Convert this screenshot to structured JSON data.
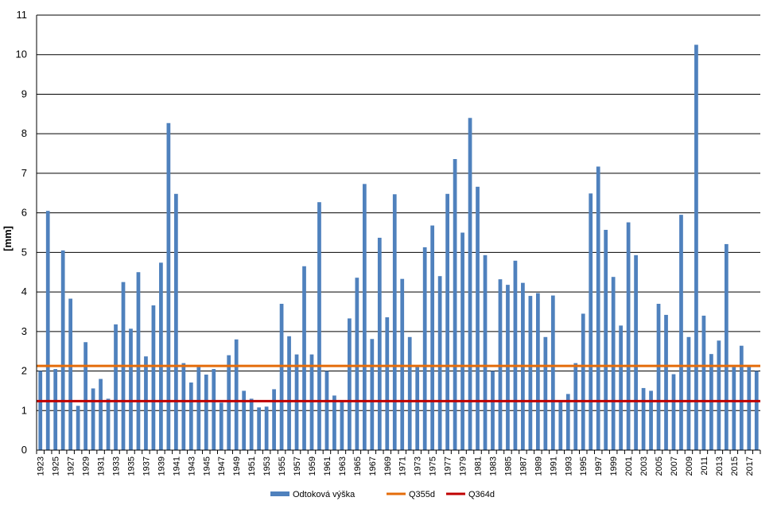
{
  "chart_data": {
    "type": "bar",
    "ylabel": "[mm]",
    "ylim": [
      0,
      11
    ],
    "yticks": [
      0,
      1,
      2,
      3,
      4,
      5,
      6,
      7,
      8,
      9,
      10,
      11
    ],
    "x": [
      1923,
      1924,
      1925,
      1926,
      1927,
      1928,
      1929,
      1930,
      1931,
      1932,
      1933,
      1934,
      1935,
      1936,
      1937,
      1938,
      1939,
      1940,
      1941,
      1942,
      1943,
      1944,
      1945,
      1946,
      1947,
      1948,
      1949,
      1950,
      1951,
      1952,
      1953,
      1954,
      1955,
      1956,
      1957,
      1958,
      1959,
      1960,
      1961,
      1962,
      1963,
      1964,
      1965,
      1966,
      1967,
      1968,
      1969,
      1970,
      1971,
      1972,
      1973,
      1974,
      1975,
      1976,
      1977,
      1978,
      1979,
      1980,
      1981,
      1982,
      1983,
      1984,
      1985,
      1986,
      1987,
      1988,
      1989,
      1990,
      1991,
      1992,
      1993,
      1994,
      1995,
      1996,
      1997,
      1998,
      1999,
      2000,
      2001,
      2002,
      2003,
      2004,
      2005,
      2006,
      2007,
      2008,
      2009,
      2010,
      2011,
      2012,
      2013,
      2014,
      2015,
      2016,
      2017,
      2018
    ],
    "xtick_labels": [
      "1923",
      "1925",
      "1927",
      "1929",
      "1931",
      "1933",
      "1935",
      "1937",
      "1939",
      "1941",
      "1943",
      "1945",
      "1947",
      "1949",
      "1951",
      "1953",
      "1955",
      "1957",
      "1959",
      "1961",
      "1963",
      "1965",
      "1967",
      "1969",
      "1971",
      "1973",
      "1975",
      "1977",
      "1979",
      "1981",
      "1983",
      "1985",
      "1987",
      "1989",
      "1991",
      "1993",
      "1995",
      "1997",
      "1999",
      "2001",
      "2003",
      "2005",
      "2007",
      "2009",
      "2011",
      "2013",
      "2015",
      "2017"
    ],
    "series": [
      {
        "name": "Odtoková výška",
        "color": "#4F81BD",
        "values": [
          2.0,
          6.05,
          2.05,
          5.05,
          3.83,
          1.12,
          2.73,
          1.56,
          1.8,
          1.3,
          3.18,
          4.25,
          3.07,
          4.5,
          2.37,
          3.66,
          4.74,
          8.27,
          6.48,
          2.2,
          1.71,
          2.1,
          1.91,
          2.05,
          1.2,
          2.4,
          2.8,
          1.5,
          1.3,
          1.08,
          1.1,
          1.54,
          3.7,
          2.88,
          2.42,
          4.65,
          2.42,
          6.27,
          2.0,
          1.38,
          1.25,
          3.33,
          4.36,
          6.73,
          2.81,
          5.37,
          3.36,
          6.47,
          4.33,
          2.86,
          2.1,
          5.13,
          5.68,
          4.4,
          6.48,
          7.36,
          5.5,
          8.4,
          6.66,
          4.93,
          2.0,
          4.32,
          4.18,
          4.79,
          4.23,
          3.9,
          3.97,
          2.86,
          3.91,
          1.25,
          1.42,
          2.2,
          3.45,
          6.49,
          7.17,
          5.57,
          4.38,
          3.15,
          5.76,
          4.93,
          1.57,
          1.5,
          3.7,
          3.42,
          1.92,
          5.95,
          2.86,
          10.25,
          3.4,
          2.43,
          2.77,
          5.21,
          2.1,
          2.64,
          2.15,
          2.0
        ]
      },
      {
        "name": "Q355d",
        "color": "#E46C0A",
        "value": 2.13
      },
      {
        "name": "Q364d",
        "color": "#C00000",
        "value": 1.24
      }
    ]
  }
}
